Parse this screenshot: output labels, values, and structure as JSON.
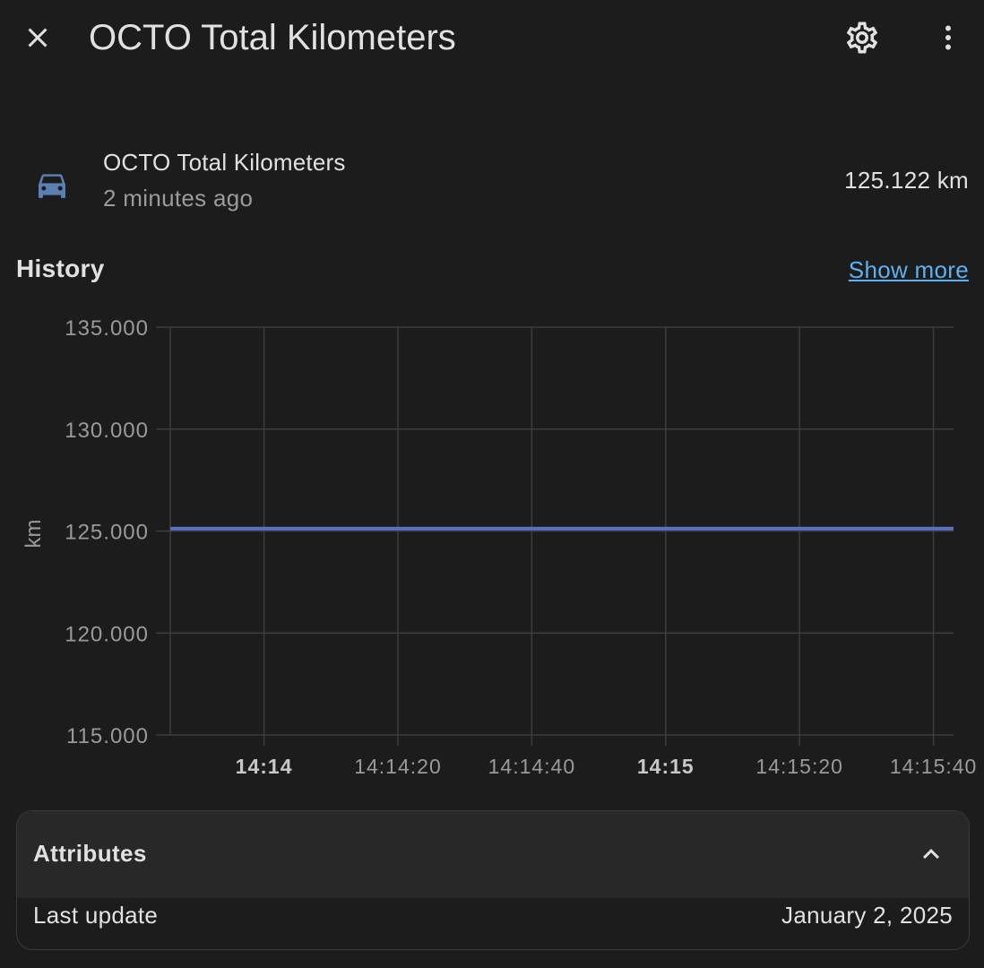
{
  "header": {
    "title": "OCTO Total Kilometers",
    "close_icon": "close-icon",
    "settings_icon": "gear-icon",
    "menu_icon": "dots-vertical-icon"
  },
  "entity": {
    "icon": "car-icon",
    "icon_color": "#5a7fb0",
    "name": "OCTO Total Kilometers",
    "last_changed": "2 minutes ago",
    "state": "125.122 km"
  },
  "history": {
    "title": "History",
    "show_more": "Show more"
  },
  "chart_data": {
    "type": "line",
    "ylabel": "km",
    "ylim": [
      115,
      135
    ],
    "y_ticks": [
      "135.000",
      "130.000",
      "125.000",
      "120.000",
      "115.000"
    ],
    "y_tick_values": [
      135,
      130,
      125,
      120,
      115
    ],
    "x_ticks": [
      {
        "label": "14:14",
        "bold": true
      },
      {
        "label": "14:14:20",
        "bold": false
      },
      {
        "label": "14:14:40",
        "bold": false
      },
      {
        "label": "14:15",
        "bold": true
      },
      {
        "label": "14:15:20",
        "bold": false
      },
      {
        "label": "14:15:40",
        "bold": false
      }
    ],
    "series": [
      {
        "color": "#5b6fc4",
        "x": [
          "14:13:46",
          "14:15:43"
        ],
        "values": [
          125.122,
          125.122
        ]
      }
    ],
    "grid": true
  },
  "attributes": {
    "title": "Attributes",
    "chevron_icon": "chevron-up-icon",
    "rows": [
      {
        "key": "Last update",
        "value": "January 2, 2025"
      }
    ]
  }
}
